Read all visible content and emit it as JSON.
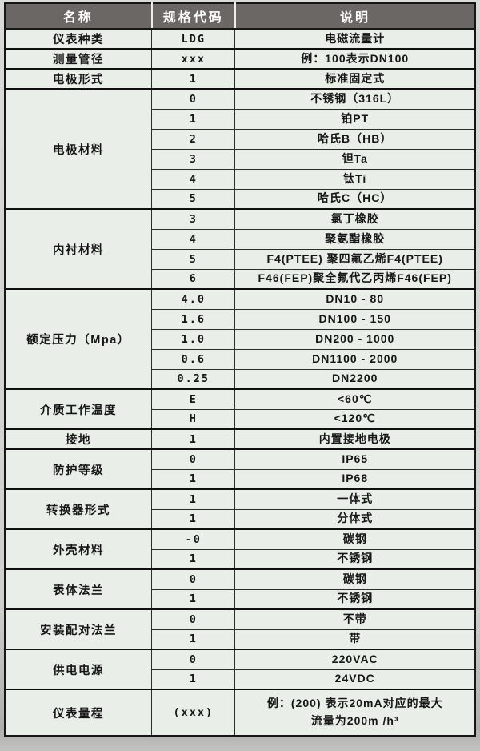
{
  "colors": {
    "header_bg": "#6b6764",
    "header_text": "#ffffff",
    "cell_bg": "#e9eee9",
    "border": "#161616",
    "page_bg": "#cfcfcd"
  },
  "table": {
    "headers": [
      "名称",
      "规格代码",
      "说明"
    ],
    "groups": [
      {
        "name": "仪表种类",
        "rows": [
          {
            "code": "LDG",
            "desc": "电磁流量计"
          }
        ]
      },
      {
        "name": "测量管径",
        "rows": [
          {
            "code": "xxx",
            "desc": "例：100表示DN100"
          }
        ]
      },
      {
        "name": "电极形式",
        "rows": [
          {
            "code": "1",
            "desc": "标准固定式"
          }
        ]
      },
      {
        "name": "电极材料",
        "rows": [
          {
            "code": "0",
            "desc": "不锈钢（316L）"
          },
          {
            "code": "1",
            "desc": "铂PT"
          },
          {
            "code": "2",
            "desc": "哈氏B（HB）"
          },
          {
            "code": "3",
            "desc": "钽Ta"
          },
          {
            "code": "4",
            "desc": "钛Ti"
          },
          {
            "code": "5",
            "desc": "哈氏C（HC）"
          }
        ]
      },
      {
        "name": "内衬材料",
        "rows": [
          {
            "code": "3",
            "desc": "氯丁橡胶"
          },
          {
            "code": "4",
            "desc": "聚氨酯橡胶"
          },
          {
            "code": "5",
            "desc": "F4(PTEE) 聚四氟乙烯F4(PTEE)"
          },
          {
            "code": "6",
            "desc": "F46(FEP)聚全氟代乙丙烯F46(FEP)"
          }
        ]
      },
      {
        "name": "额定压力（Mpa）",
        "rows": [
          {
            "code": "4.0",
            "desc": "DN10 - 80"
          },
          {
            "code": "1.6",
            "desc": "DN100 - 150"
          },
          {
            "code": "1.0",
            "desc": "DN200 - 1000"
          },
          {
            "code": "0.6",
            "desc": "DN1100 - 2000"
          },
          {
            "code": "0.25",
            "desc": "DN2200"
          }
        ]
      },
      {
        "name": "介质工作温度",
        "rows": [
          {
            "code": "E",
            "desc": "<60℃"
          },
          {
            "code": "H",
            "desc": "<120℃"
          }
        ]
      },
      {
        "name": "接地",
        "rows": [
          {
            "code": "1",
            "desc": "内置接地电极"
          }
        ]
      },
      {
        "name": "防护等级",
        "rows": [
          {
            "code": "0",
            "desc": "IP65"
          },
          {
            "code": "1",
            "desc": "IP68"
          }
        ]
      },
      {
        "name": "转换器形式",
        "rows": [
          {
            "code": "1",
            "desc": "一体式"
          },
          {
            "code": "1",
            "desc": "分体式"
          }
        ]
      },
      {
        "name": "外壳材料",
        "rows": [
          {
            "code": "-0",
            "desc": "碳钢"
          },
          {
            "code": "1",
            "desc": "不锈钢"
          }
        ]
      },
      {
        "name": "表体法兰",
        "rows": [
          {
            "code": "0",
            "desc": "碳钢"
          },
          {
            "code": "1",
            "desc": "不锈钢"
          }
        ]
      },
      {
        "name": "安装配对法兰",
        "rows": [
          {
            "code": "0",
            "desc": "不带"
          },
          {
            "code": "1",
            "desc": "带"
          }
        ]
      },
      {
        "name": "供电电源",
        "rows": [
          {
            "code": "0",
            "desc": "220VAC"
          },
          {
            "code": "1",
            "desc": "24VDC"
          }
        ]
      },
      {
        "name": "仪表量程",
        "rows": [
          {
            "code": "(xxx)",
            "desc": "例：(200) 表示20mA对应的最大\n流量为200m /h³",
            "tall": true
          }
        ]
      }
    ]
  }
}
